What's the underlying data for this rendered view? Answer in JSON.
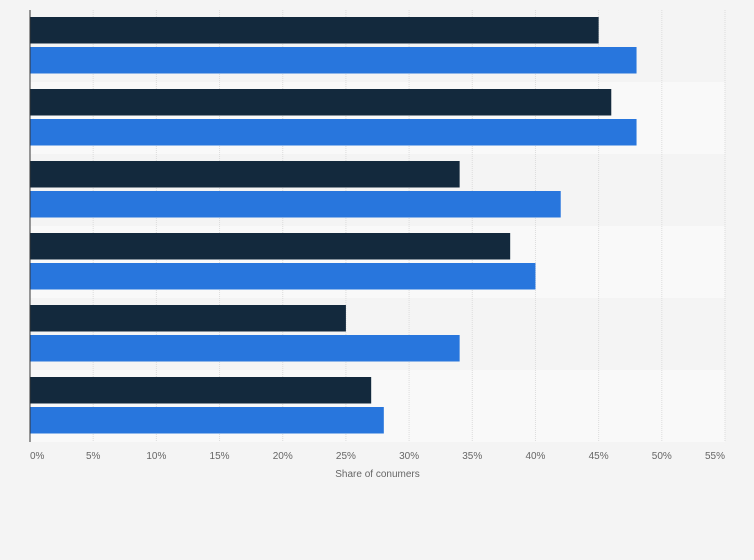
{
  "chart_data": {
    "type": "bar",
    "orientation": "horizontal",
    "title": "",
    "xlabel": "Share of conumers",
    "ylabel": "",
    "xlim": [
      0,
      55
    ],
    "value_format": "percent",
    "x_ticks": [
      "0%",
      "5%",
      "10%",
      "15%",
      "20%",
      "25%",
      "30%",
      "35%",
      "40%",
      "45%",
      "50%",
      "55%"
    ],
    "categories": [
      "",
      "",
      "",
      "",
      "",
      ""
    ],
    "series": [
      {
        "name": "",
        "color": "#13293d",
        "values": [
          45,
          46,
          34,
          38,
          25,
          27
        ]
      },
      {
        "name": "",
        "color": "#2876dd",
        "values": [
          48,
          48,
          42,
          40,
          34,
          28
        ]
      }
    ],
    "grid": true,
    "legend": "none"
  }
}
